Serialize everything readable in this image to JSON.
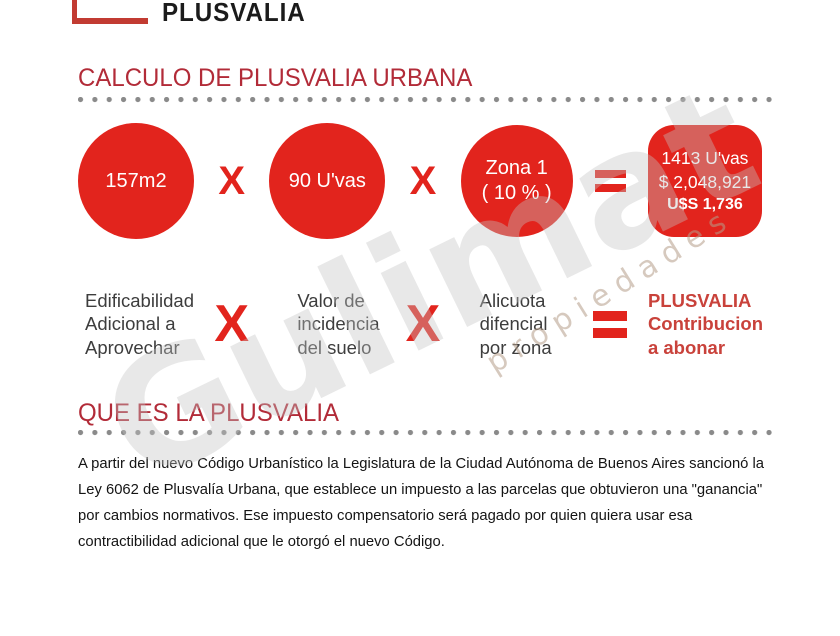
{
  "brand": {
    "name": "PLUSVALIA"
  },
  "colors": {
    "bright_red": "#E2241D",
    "heading_red": "#B22B38",
    "result_label_red": "#C9423B",
    "logo_red": "#C23B32",
    "label_gray": "#3D3D3D",
    "dot_gray": "#8A8A8A",
    "watermark_gray": "#C4C4C4",
    "watermark_tan": "#B59E8A"
  },
  "calc_section": {
    "title": "CALCULO DE PLUSVALIA URBANA",
    "multiply": "X",
    "operand1": {
      "value": "157m2",
      "label": [
        "Edificabilidad",
        "Adicional a",
        "Aprovechar"
      ]
    },
    "operand2": {
      "value": "90 U'vas",
      "label": [
        "Valor de",
        "incidencia",
        "del suelo"
      ]
    },
    "operand3": {
      "value_line1": "Zona 1",
      "value_line2": "( 10 % )",
      "label": [
        "Alicuota",
        "difencial",
        "por zona"
      ]
    },
    "result": {
      "line1": "1413 U'vas",
      "line2": "$ 2,048,921",
      "line3": "U$S 1,736",
      "label": [
        "PLUSVALIA",
        "Contribucion",
        "a abonar"
      ]
    }
  },
  "about_section": {
    "title": "QUE ES LA PLUSVALIA",
    "paragraph": [
      "A partir del nuevo Código Urbanístico la Legislatura de la Ciudad Autónoma de Buenos Aires sancionó la",
      "Ley 6062 de Plusvalía Urbana, que establece un impuesto a las parcelas que obtuvieron una \"ganancia\"",
      "por cambios normativos. Ese impuesto compensatorio será pagado por quien quiera usar esa",
      "contractibilidad adicional que le otorgó el nuevo Código."
    ]
  },
  "watermark": {
    "main": "Gulimat",
    "sub": "propiedades"
  }
}
